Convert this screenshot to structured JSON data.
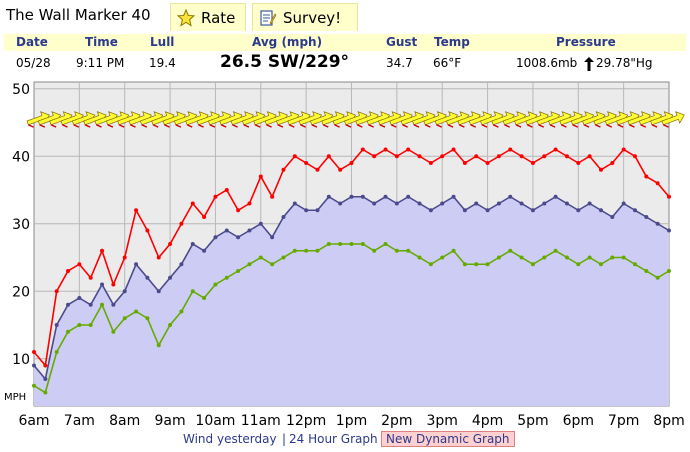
{
  "header": {
    "station_title": "The Wall Marker 40",
    "rate_label": "Rate",
    "survey_label": "Survey!"
  },
  "readings": {
    "labels": {
      "date": "Date",
      "time": "Time",
      "lull": "Lull",
      "avg": "Avg (mph)",
      "gust": "Gust",
      "temp": "Temp",
      "pressure": "Pressure"
    },
    "values": {
      "date": "05/28",
      "time": "9:11 PM",
      "lull": "19.4",
      "avg": "26.5 SW/229°",
      "gust": "34.7",
      "temp": "66°F",
      "pressure_mb": "1008.6mb",
      "pressure_hg": "29.78\"Hg"
    }
  },
  "footer": {
    "wind_yesterday": "Wind yesterday",
    "sep": "|",
    "graph_24h": "24 Hour Graph",
    "dynamic_graph": "New Dynamic Graph"
  },
  "colors": {
    "gust": "#ff0000",
    "avg": "#4a4a8c",
    "lull": "#66aa00",
    "fill": "#ccccf5",
    "arrow": "#ffff33",
    "tab_bg": "#ffffcc",
    "label_blue": "#2b3a8c"
  },
  "chart_data": {
    "type": "line",
    "ylabel": "MPH",
    "ylim": [
      3,
      51
    ],
    "xlim": [
      6,
      20
    ],
    "yticks": [
      10,
      20,
      30,
      40,
      50
    ],
    "xtick_labels": [
      "6am",
      "7am",
      "8am",
      "9am",
      "10am",
      "11am",
      "12pm",
      "1pm",
      "2pm",
      "3pm",
      "4pm",
      "5pm",
      "6pm",
      "7pm",
      "8pm"
    ],
    "grid": true,
    "x": [
      6.0,
      6.25,
      6.5,
      6.75,
      7.0,
      7.25,
      7.5,
      7.75,
      8.0,
      8.25,
      8.5,
      8.75,
      9.0,
      9.25,
      9.5,
      9.75,
      10.0,
      10.25,
      10.5,
      10.75,
      11.0,
      11.25,
      11.5,
      11.75,
      12.0,
      12.25,
      12.5,
      12.75,
      13.0,
      13.25,
      13.5,
      13.75,
      14.0,
      14.25,
      14.5,
      14.75,
      15.0,
      15.25,
      15.5,
      15.75,
      16.0,
      16.25,
      16.5,
      16.75,
      17.0,
      17.25,
      17.5,
      17.75,
      18.0,
      18.25,
      18.5,
      18.75,
      19.0,
      19.25,
      19.5,
      19.75,
      20.0
    ],
    "series": [
      {
        "key": "gust",
        "color": "#ff0000",
        "values": [
          11,
          9,
          20,
          23,
          24,
          22,
          26,
          21,
          25,
          32,
          29,
          25,
          27,
          30,
          33,
          31,
          34,
          35,
          32,
          33,
          37,
          34,
          38,
          40,
          39,
          38,
          40,
          38,
          39,
          41,
          40,
          41,
          40,
          41,
          40,
          39,
          40,
          41,
          39,
          40,
          39,
          40,
          41,
          40,
          39,
          40,
          41,
          40,
          39,
          40,
          38,
          39,
          41,
          40,
          37,
          36,
          34
        ]
      },
      {
        "key": "avg",
        "color": "#4a4a8c",
        "values": [
          9,
          7,
          15,
          18,
          19,
          18,
          21,
          18,
          20,
          24,
          22,
          20,
          22,
          24,
          27,
          26,
          28,
          29,
          28,
          29,
          30,
          28,
          31,
          33,
          32,
          32,
          34,
          33,
          34,
          34,
          33,
          34,
          33,
          34,
          33,
          32,
          33,
          34,
          32,
          33,
          32,
          33,
          34,
          33,
          32,
          33,
          34,
          33,
          32,
          33,
          32,
          31,
          33,
          32,
          31,
          30,
          29
        ]
      },
      {
        "key": "lull",
        "color": "#66aa00",
        "values": [
          6,
          5,
          11,
          14,
          15,
          15,
          18,
          14,
          16,
          17,
          16,
          12,
          15,
          17,
          20,
          19,
          21,
          22,
          23,
          24,
          25,
          24,
          25,
          26,
          26,
          26,
          27,
          27,
          27,
          27,
          26,
          27,
          26,
          26,
          25,
          24,
          25,
          26,
          24,
          24,
          24,
          25,
          26,
          25,
          24,
          25,
          26,
          25,
          24,
          25,
          24,
          25,
          25,
          24,
          23,
          22,
          23
        ]
      },
      {
        "key": "direction",
        "color": "#ffff33",
        "values": [
          45.5,
          45.5,
          45.5,
          45.5,
          45.5,
          45.5,
          45.5,
          45.5,
          45.5,
          45.5,
          45.5,
          45.5,
          45.5,
          45.5,
          45.5,
          45.5,
          45.5,
          45.5,
          45.5,
          45.5,
          45.5,
          45.5,
          45.5,
          45.5,
          45.5,
          45.5,
          45.5,
          45.5,
          45.5,
          45.5,
          45.5,
          45.5,
          45.5,
          45.5,
          45.5,
          45.5,
          45.5,
          45.5,
          45.5,
          45.5,
          45.5,
          45.5,
          45.5,
          45.5,
          45.5,
          45.5,
          45.5,
          45.5,
          45.5,
          45.5,
          45.5,
          45.5,
          45.5,
          45.5,
          45.5,
          45.5,
          45.5
        ]
      }
    ]
  }
}
